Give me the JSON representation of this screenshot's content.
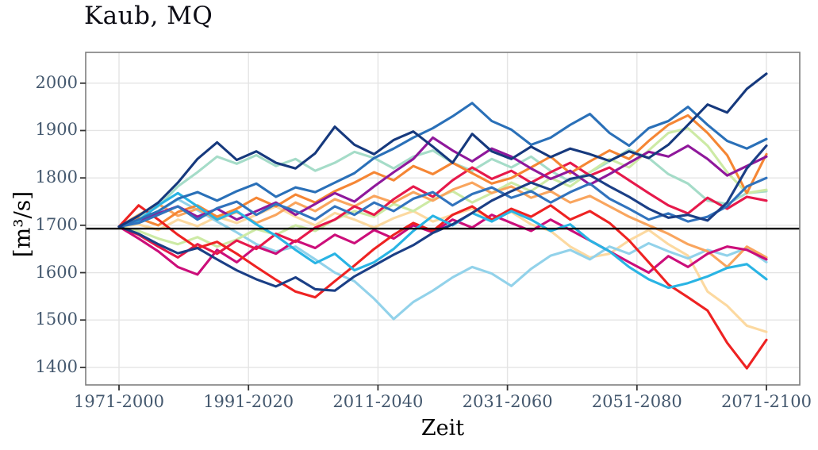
{
  "title": "Kaub, MQ",
  "ui_colors": {
    "background": "#ffffff",
    "title_color": "#0d0d15",
    "tick_label_color": "#44586e",
    "axis_border_color": "#7f7f7f",
    "gridline_color": "#e4e4e4",
    "reference_line_color": "#000000"
  },
  "chart_data": {
    "type": "line",
    "title": "Kaub, MQ",
    "xlabel": "Zeit",
    "ylabel": "[m³/s]",
    "x_tick_labels": [
      "1971-2000",
      "1991-2020",
      "2011-2040",
      "2031-2060",
      "2051-2080",
      "2071-2100"
    ],
    "y_ticks": [
      1400,
      1500,
      1600,
      1700,
      1800,
      1900,
      2000
    ],
    "ylim": [
      1363,
      2065
    ],
    "grid": "major-only",
    "legend": "none",
    "reference_line": {
      "value": 1693,
      "color": "#000000",
      "width": 2.4
    },
    "line_width": 3.1,
    "series": [
      {
        "name": "cream",
        "color": "#fcd9a0",
        "values": [
          1697,
          1702,
          1690,
          1712,
          1698,
          1718,
          1705,
          1722,
          1740,
          1718,
          1700,
          1726,
          1712,
          1695,
          1715,
          1730,
          1708,
          1722,
          1735,
          1712,
          1728,
          1702,
          1688,
          1655,
          1632,
          1640,
          1668,
          1690,
          1660,
          1636,
          1560,
          1530,
          1488,
          1475
        ]
      },
      {
        "name": "sky-pale",
        "color": "#92d2ea",
        "values": [
          1697,
          1705,
          1728,
          1755,
          1732,
          1708,
          1685,
          1660,
          1645,
          1655,
          1628,
          1600,
          1582,
          1545,
          1502,
          1538,
          1562,
          1590,
          1612,
          1598,
          1572,
          1608,
          1636,
          1648,
          1628,
          1655,
          1640,
          1662,
          1645,
          1630,
          1648,
          1636,
          1652,
          1622
        ]
      },
      {
        "name": "teal-pale",
        "color": "#a5dcc8",
        "values": [
          1697,
          1715,
          1740,
          1782,
          1812,
          1845,
          1830,
          1848,
          1825,
          1840,
          1815,
          1832,
          1855,
          1842,
          1820,
          1845,
          1858,
          1832,
          1815,
          1840,
          1822,
          1845,
          1815,
          1792,
          1812,
          1835,
          1860,
          1842,
          1808,
          1788,
          1752,
          1745,
          1768,
          1772
        ]
      },
      {
        "name": "pale-green",
        "color": "#cdeaa5",
        "values": [
          1697,
          1688,
          1672,
          1660,
          1675,
          1655,
          1670,
          1692,
          1680,
          1700,
          1688,
          1712,
          1730,
          1718,
          1745,
          1730,
          1755,
          1772,
          1748,
          1768,
          1790,
          1772,
          1800,
          1782,
          1812,
          1840,
          1822,
          1858,
          1895,
          1905,
          1868,
          1812,
          1768,
          1775
        ]
      },
      {
        "name": "peach",
        "color": "#f9a55e",
        "values": [
          1697,
          1722,
          1745,
          1720,
          1735,
          1712,
          1728,
          1705,
          1722,
          1748,
          1730,
          1755,
          1740,
          1762,
          1748,
          1770,
          1752,
          1775,
          1790,
          1768,
          1782,
          1758,
          1772,
          1748,
          1762,
          1740,
          1718,
          1700,
          1682,
          1660,
          1645,
          1612,
          1655,
          1632
        ]
      },
      {
        "name": "magenta",
        "color": "#cc0e7a",
        "values": [
          1697,
          1672,
          1645,
          1612,
          1596,
          1648,
          1622,
          1655,
          1640,
          1668,
          1652,
          1680,
          1662,
          1690,
          1672,
          1700,
          1685,
          1712,
          1695,
          1722,
          1705,
          1688,
          1712,
          1690,
          1668,
          1645,
          1622,
          1600,
          1635,
          1612,
          1640,
          1655,
          1648,
          1628
        ]
      },
      {
        "name": "crimson",
        "color": "#e6194b",
        "values": [
          1697,
          1680,
          1655,
          1632,
          1660,
          1640,
          1668,
          1650,
          1682,
          1665,
          1695,
          1712,
          1740,
          1722,
          1755,
          1782,
          1760,
          1795,
          1822,
          1798,
          1815,
          1790,
          1812,
          1832,
          1805,
          1822,
          1795,
          1768,
          1742,
          1725,
          1758,
          1735,
          1760,
          1752
        ]
      },
      {
        "name": "orange",
        "color": "#f58634",
        "values": [
          1697,
          1715,
          1700,
          1728,
          1742,
          1718,
          1735,
          1758,
          1740,
          1765,
          1748,
          1772,
          1790,
          1812,
          1795,
          1825,
          1808,
          1832,
          1810,
          1788,
          1800,
          1822,
          1845,
          1810,
          1835,
          1858,
          1840,
          1878,
          1912,
          1932,
          1895,
          1848,
          1768,
          1850
        ]
      },
      {
        "name": "red",
        "color": "#ee2222",
        "values": [
          1697,
          1742,
          1712,
          1680,
          1652,
          1665,
          1640,
          1612,
          1585,
          1560,
          1548,
          1582,
          1615,
          1650,
          1680,
          1705,
          1688,
          1722,
          1740,
          1712,
          1735,
          1718,
          1742,
          1712,
          1730,
          1705,
          1668,
          1622,
          1575,
          1548,
          1520,
          1452,
          1398,
          1458
        ]
      },
      {
        "name": "purple",
        "color": "#8f189b",
        "values": [
          1697,
          1708,
          1725,
          1740,
          1718,
          1735,
          1712,
          1730,
          1748,
          1722,
          1745,
          1768,
          1750,
          1782,
          1812,
          1840,
          1885,
          1858,
          1835,
          1862,
          1845,
          1820,
          1798,
          1815,
          1786,
          1808,
          1832,
          1855,
          1845,
          1868,
          1840,
          1805,
          1825,
          1845
        ]
      },
      {
        "name": "cyan",
        "color": "#29b4e4",
        "values": [
          1697,
          1710,
          1742,
          1768,
          1740,
          1712,
          1730,
          1702,
          1678,
          1648,
          1620,
          1640,
          1605,
          1622,
          1650,
          1688,
          1720,
          1700,
          1726,
          1708,
          1730,
          1712,
          1688,
          1702,
          1668,
          1645,
          1612,
          1586,
          1568,
          1578,
          1592,
          1610,
          1618,
          1586
        ]
      },
      {
        "name": "steel-blue",
        "color": "#3173bd",
        "values": [
          1697,
          1705,
          1722,
          1740,
          1712,
          1736,
          1750,
          1722,
          1745,
          1730,
          1712,
          1740,
          1722,
          1748,
          1730,
          1756,
          1770,
          1742,
          1766,
          1780,
          1758,
          1772,
          1748,
          1770,
          1788,
          1756,
          1735,
          1712,
          1725,
          1708,
          1718,
          1740,
          1782,
          1800
        ]
      },
      {
        "name": "medium-blue",
        "color": "#2a70b8",
        "values": [
          1697,
          1712,
          1730,
          1756,
          1770,
          1752,
          1772,
          1788,
          1760,
          1780,
          1770,
          1790,
          1810,
          1842,
          1862,
          1885,
          1905,
          1930,
          1958,
          1920,
          1902,
          1870,
          1885,
          1912,
          1935,
          1895,
          1868,
          1905,
          1920,
          1950,
          1912,
          1878,
          1862,
          1882
        ]
      },
      {
        "name": "navy-2",
        "color": "#1b3f86",
        "values": [
          1697,
          1682,
          1660,
          1641,
          1652,
          1628,
          1605,
          1586,
          1571,
          1590,
          1565,
          1562,
          1592,
          1615,
          1638,
          1658,
          1684,
          1702,
          1726,
          1752,
          1772,
          1790,
          1775,
          1798,
          1806,
          1782,
          1760,
          1735,
          1716,
          1722,
          1710,
          1748,
          1820,
          1868
        ]
      },
      {
        "name": "navy-1",
        "color": "#16397d",
        "values": [
          1697,
          1720,
          1748,
          1790,
          1840,
          1875,
          1838,
          1856,
          1832,
          1820,
          1852,
          1908,
          1870,
          1850,
          1880,
          1898,
          1866,
          1832,
          1893,
          1856,
          1840,
          1866,
          1844,
          1862,
          1850,
          1836,
          1856,
          1842,
          1870,
          1912,
          1955,
          1938,
          1988,
          2020
        ]
      }
    ]
  }
}
